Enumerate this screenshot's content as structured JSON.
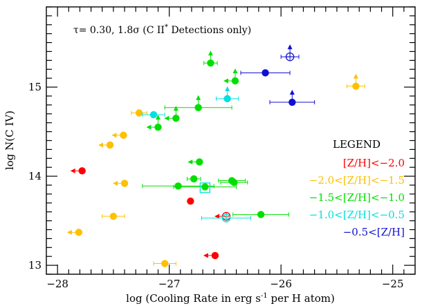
{
  "chart_data": {
    "type": "scatter",
    "title": "",
    "xlabel": "log (Cooling Rate in erg s",
    "xlabel_sup": "-1",
    "xlabel_tail": " per H atom)",
    "ylabel": "log N(C IV)",
    "xlim": [
      -28.1,
      -24.8
    ],
    "ylim": [
      12.9,
      15.9
    ],
    "xticks": [
      -28,
      -27,
      -26,
      -25
    ],
    "xtick_labels": [
      "−28",
      "−27",
      "−26",
      "−25"
    ],
    "yticks": [
      13,
      14,
      15
    ],
    "ytick_labels": [
      "13",
      "14",
      "15"
    ],
    "annotation": "τ= 0.30, 1.8σ (C II",
    "annotation_sup": "*",
    "annotation_tail": " Detections only)",
    "legend_position": "right",
    "legend_title": "LEGEND",
    "colors": {
      "red": "#ff0000",
      "yellow": "#ffc000",
      "green": "#00e000",
      "cyan": "#00e0e0",
      "blue": "#1010d0"
    },
    "legend": [
      {
        "text": "[Z/H]<−2.0",
        "color": "red"
      },
      {
        "text": "−2.0<[Z/H]<−1.5",
        "color": "yellow"
      },
      {
        "text": "−1.5<[Z/H]<−1.0",
        "color": "green"
      },
      {
        "text": "−1.0<[Z/H]<−0.5",
        "color": "cyan"
      },
      {
        "text": "−0.5<[Z/H]",
        "color": "blue"
      }
    ],
    "points": [
      {
        "x": -27.78,
        "y": 14.06,
        "color": "red",
        "marker": "filled",
        "left": true
      },
      {
        "x": -26.81,
        "y": 13.72,
        "color": "red",
        "marker": "filled"
      },
      {
        "x": -26.49,
        "y": 13.55,
        "color": "red",
        "marker": "open",
        "left": true
      },
      {
        "x": -26.59,
        "y": 13.11,
        "color": "red",
        "marker": "filled",
        "left": true
      },
      {
        "x": -27.27,
        "y": 14.71,
        "color": "yellow",
        "marker": "filled",
        "xerr": 0.07
      },
      {
        "x": -27.41,
        "y": 14.46,
        "color": "yellow",
        "marker": "filled",
        "left": true
      },
      {
        "x": -27.53,
        "y": 14.35,
        "color": "yellow",
        "marker": "filled",
        "left": true
      },
      {
        "x": -27.4,
        "y": 13.92,
        "color": "yellow",
        "marker": "filled",
        "left": true
      },
      {
        "x": -27.5,
        "y": 13.55,
        "color": "yellow",
        "marker": "filled",
        "xerr": 0.1
      },
      {
        "x": -27.81,
        "y": 13.37,
        "color": "yellow",
        "marker": "filled",
        "left": true
      },
      {
        "x": -27.04,
        "y": 13.02,
        "color": "yellow",
        "marker": "filled",
        "xerr": 0.1
      },
      {
        "x": -25.33,
        "y": 15.01,
        "color": "yellow",
        "marker": "filled",
        "up": true,
        "xerr": 0.08
      },
      {
        "x": -26.63,
        "y": 15.27,
        "color": "green",
        "marker": "filled",
        "up": true,
        "xerr": 0.06
      },
      {
        "x": -26.41,
        "y": 15.07,
        "color": "green",
        "marker": "filled",
        "up": true,
        "left": true
      },
      {
        "x": -26.74,
        "y": 14.77,
        "color": "green",
        "marker": "filled",
        "up": true,
        "xerr": 0.3
      },
      {
        "x": -26.94,
        "y": 14.65,
        "color": "green",
        "marker": "filled",
        "up": true,
        "left": true
      },
      {
        "x": -27.1,
        "y": 14.55,
        "color": "green",
        "marker": "filled",
        "up": true,
        "left": true
      },
      {
        "x": -26.73,
        "y": 14.16,
        "color": "green",
        "marker": "filled",
        "left": true
      },
      {
        "x": -26.78,
        "y": 13.97,
        "color": "green",
        "marker": "filled",
        "xerr": 0.06
      },
      {
        "x": -26.92,
        "y": 13.89,
        "color": "green",
        "marker": "filled",
        "xerr": 0.32
      },
      {
        "x": -26.44,
        "y": 13.95,
        "color": "green",
        "marker": "filled",
        "xerr": 0.12
      },
      {
        "x": -26.42,
        "y": 13.93,
        "color": "green",
        "marker": "filled",
        "xerr": 0.12
      },
      {
        "x": -26.68,
        "y": 13.88,
        "color": "green",
        "marker": "filled",
        "xerr": 0.28
      },
      {
        "x": -26.18,
        "y": 13.57,
        "color": "green",
        "marker": "filled",
        "xerr": 0.25
      },
      {
        "x": -27.14,
        "y": 14.69,
        "color": "cyan",
        "marker": "filled",
        "xerr": 0.1
      },
      {
        "x": -26.48,
        "y": 14.87,
        "color": "cyan",
        "marker": "filled",
        "up": true,
        "xerr": 0.1
      },
      {
        "x": -26.68,
        "y": 13.87,
        "color": "cyan",
        "marker": "box"
      },
      {
        "x": -26.49,
        "y": 13.53,
        "color": "cyan",
        "marker": "open",
        "xerr": 0.22
      },
      {
        "x": -25.92,
        "y": 15.34,
        "color": "blue",
        "marker": "open",
        "up": true,
        "xerr": 0.08
      },
      {
        "x": -26.14,
        "y": 15.16,
        "color": "blue",
        "marker": "filled",
        "xerr": 0.22
      },
      {
        "x": -25.9,
        "y": 14.83,
        "color": "blue",
        "marker": "filled",
        "up": true,
        "xerr": 0.2
      }
    ]
  }
}
